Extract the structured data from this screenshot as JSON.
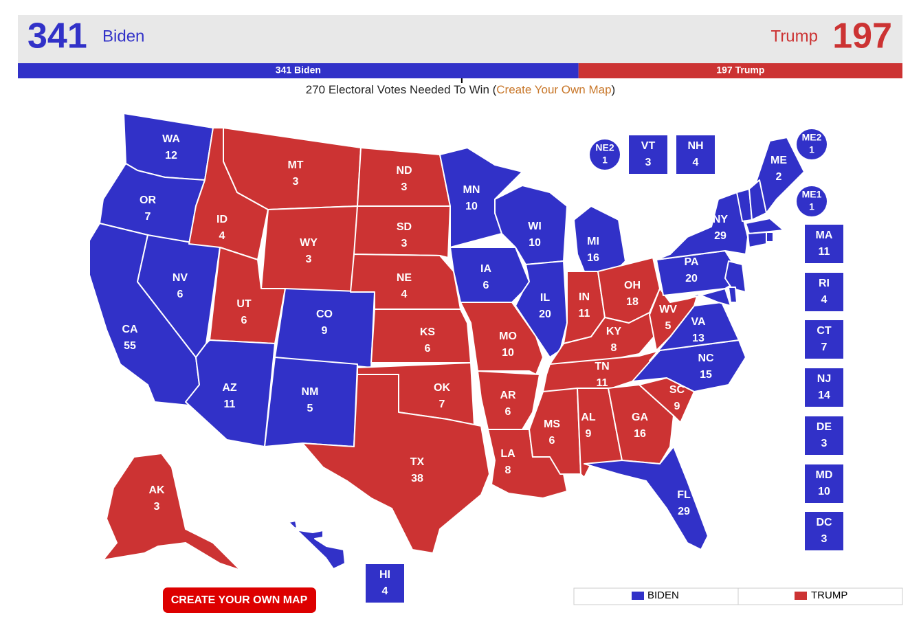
{
  "header": {
    "biden_total": 341,
    "biden_name": "Biden",
    "trump_name": "Trump",
    "trump_total": 197,
    "biden_color": "#3131c8",
    "trump_color": "#cc3333"
  },
  "bar": {
    "biden_label": "341 Biden",
    "trump_label": "197 Trump",
    "needed": 270
  },
  "subtitle": {
    "before": "270 Electoral Votes Needed To Win (",
    "link": "Create Your Own Map",
    "after": ")"
  },
  "states": [
    {
      "abbr": "WA",
      "votes": 12,
      "color": "#3131c8"
    },
    {
      "abbr": "OR",
      "votes": 7,
      "color": "#3131c8"
    },
    {
      "abbr": "CA",
      "votes": 55,
      "color": "#3131c8"
    },
    {
      "abbr": "NV",
      "votes": 6,
      "color": "#3131c8"
    },
    {
      "abbr": "ID",
      "votes": 4,
      "color": "#cc3333"
    },
    {
      "abbr": "MT",
      "votes": 3,
      "color": "#cc3333"
    },
    {
      "abbr": "WY",
      "votes": 3,
      "color": "#cc3333"
    },
    {
      "abbr": "UT",
      "votes": 6,
      "color": "#cc3333"
    },
    {
      "abbr": "AZ",
      "votes": 11,
      "color": "#3131c8"
    },
    {
      "abbr": "CO",
      "votes": 9,
      "color": "#3131c8"
    },
    {
      "abbr": "NM",
      "votes": 5,
      "color": "#3131c8"
    },
    {
      "abbr": "ND",
      "votes": 3,
      "color": "#cc3333"
    },
    {
      "abbr": "SD",
      "votes": 3,
      "color": "#cc3333"
    },
    {
      "abbr": "NE",
      "votes": 4,
      "color": "#cc3333"
    },
    {
      "abbr": "KS",
      "votes": 6,
      "color": "#cc3333"
    },
    {
      "abbr": "OK",
      "votes": 7,
      "color": "#cc3333"
    },
    {
      "abbr": "TX",
      "votes": 38,
      "color": "#cc3333"
    },
    {
      "abbr": "MN",
      "votes": 10,
      "color": "#3131c8"
    },
    {
      "abbr": "IA",
      "votes": 6,
      "color": "#3131c8"
    },
    {
      "abbr": "MO",
      "votes": 10,
      "color": "#cc3333"
    },
    {
      "abbr": "WI",
      "votes": 10,
      "color": "#3131c8"
    },
    {
      "abbr": "IL",
      "votes": 20,
      "color": "#3131c8"
    },
    {
      "abbr": "MI",
      "votes": 16,
      "color": "#3131c8"
    },
    {
      "abbr": "IN",
      "votes": 11,
      "color": "#cc3333"
    },
    {
      "abbr": "OH",
      "votes": 18,
      "color": "#cc3333"
    },
    {
      "abbr": "KY",
      "votes": 8,
      "color": "#cc3333"
    },
    {
      "abbr": "TN",
      "votes": 11,
      "color": "#cc3333"
    },
    {
      "abbr": "AR",
      "votes": 6,
      "color": "#cc3333"
    },
    {
      "abbr": "LA",
      "votes": 8,
      "color": "#cc3333"
    },
    {
      "abbr": "MS",
      "votes": 6,
      "color": "#cc3333"
    },
    {
      "abbr": "AL",
      "votes": 9,
      "color": "#cc3333"
    },
    {
      "abbr": "GA",
      "votes": 16,
      "color": "#cc3333"
    },
    {
      "abbr": "FL",
      "votes": 29,
      "color": "#3131c8"
    },
    {
      "abbr": "SC",
      "votes": 9,
      "color": "#cc3333"
    },
    {
      "abbr": "NC",
      "votes": 15,
      "color": "#3131c8"
    },
    {
      "abbr": "VA",
      "votes": 13,
      "color": "#3131c8"
    },
    {
      "abbr": "WV",
      "votes": 5,
      "color": "#cc3333"
    },
    {
      "abbr": "PA",
      "votes": 20,
      "color": "#3131c8"
    },
    {
      "abbr": "NY",
      "votes": 29,
      "color": "#3131c8"
    },
    {
      "abbr": "ME",
      "votes": 2,
      "color": "#3131c8"
    },
    {
      "abbr": "AK",
      "votes": 3,
      "color": "#cc3333"
    },
    {
      "abbr": "HI",
      "votes": 4,
      "color": "#3131c8"
    },
    {
      "abbr": "VT",
      "votes": 3,
      "color": "#3131c8"
    },
    {
      "abbr": "NH",
      "votes": 4,
      "color": "#3131c8"
    },
    {
      "abbr": "MA",
      "votes": 11,
      "color": "#3131c8"
    },
    {
      "abbr": "RI",
      "votes": 4,
      "color": "#3131c8"
    },
    {
      "abbr": "CT",
      "votes": 7,
      "color": "#3131c8"
    },
    {
      "abbr": "NJ",
      "votes": 14,
      "color": "#3131c8"
    },
    {
      "abbr": "DE",
      "votes": 3,
      "color": "#3131c8"
    },
    {
      "abbr": "MD",
      "votes": 10,
      "color": "#3131c8"
    },
    {
      "abbr": "DC",
      "votes": 3,
      "color": "#3131c8"
    },
    {
      "abbr": "NE2",
      "votes": 1,
      "color": "#3131c8"
    },
    {
      "abbr": "ME2",
      "votes": 1,
      "color": "#3131c8"
    },
    {
      "abbr": "ME1",
      "votes": 1,
      "color": "#3131c8"
    }
  ],
  "button": "CREATE YOUR OWN MAP",
  "legend": {
    "biden": "BIDEN",
    "trump": "TRUMP"
  }
}
